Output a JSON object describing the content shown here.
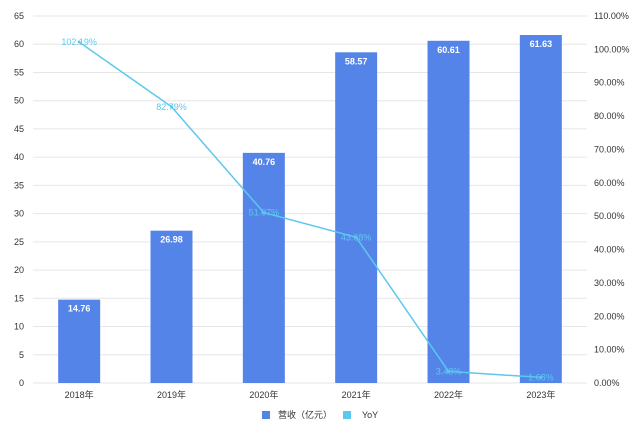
{
  "chart_data": {
    "type": "bar",
    "categories": [
      "2018年",
      "2019年",
      "2020年",
      "2021年",
      "2022年",
      "2023年"
    ],
    "series": [
      {
        "name": "营收（亿元）",
        "type": "bar",
        "axis": "left",
        "color": "#5584e8",
        "values": [
          14.76,
          26.98,
          40.76,
          58.57,
          60.61,
          61.63
        ],
        "labels": [
          "14.76",
          "26.98",
          "40.76",
          "58.57",
          "60.61",
          "61.63"
        ]
      },
      {
        "name": "YoY",
        "type": "line",
        "axis": "right",
        "color": "#5bc8ee",
        "values": [
          102.19,
          82.79,
          51.07,
          43.68,
          3.48,
          1.68
        ],
        "labels": [
          "102.19%",
          "82.79%",
          "51.07%",
          "43.68%",
          "3.48%",
          "1.68%"
        ]
      }
    ],
    "y_left": {
      "ylim": [
        0,
        65
      ],
      "ticks": [
        "0",
        "5",
        "10",
        "15",
        "20",
        "25",
        "30",
        "35",
        "40",
        "45",
        "50",
        "55",
        "60",
        "65"
      ]
    },
    "y_right": {
      "ylim": [
        0,
        110
      ],
      "ticks": [
        "0.00%",
        "10.00%",
        "20.00%",
        "30.00%",
        "40.00%",
        "50.00%",
        "60.00%",
        "70.00%",
        "80.00%",
        "90.00%",
        "100.00%",
        "110.00%"
      ]
    },
    "grid": "horizontal",
    "legend_position": "bottom-center"
  }
}
